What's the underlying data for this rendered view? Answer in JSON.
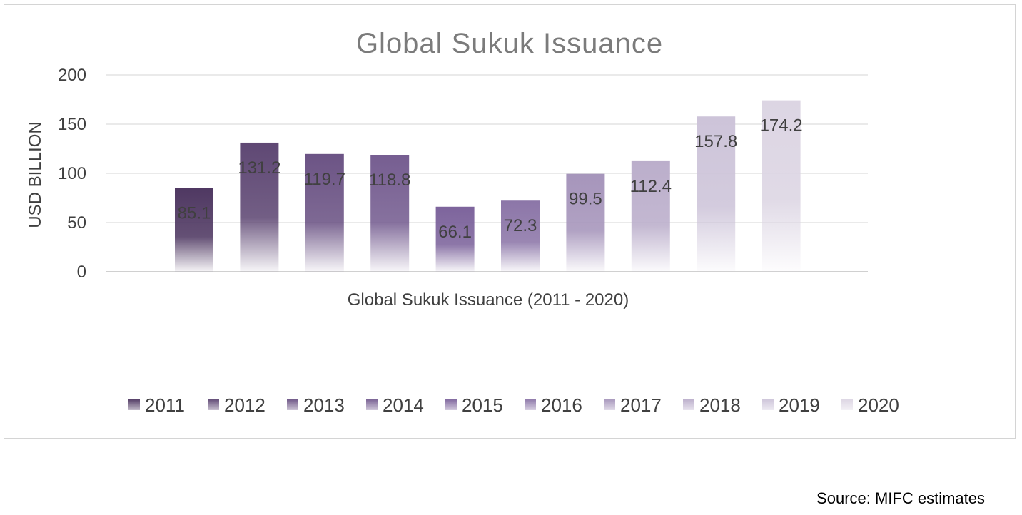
{
  "chart_data": {
    "type": "bar",
    "title": "Global Sukuk Issuance",
    "xlabel": "Global Sukuk Issuance (2011 - 2020)",
    "ylabel": "USD BILLION",
    "ylim": [
      0,
      200
    ],
    "yticks": [
      "0",
      "50",
      "100",
      "150",
      "200"
    ],
    "grid": true,
    "legend_position": "bottom",
    "series": [
      {
        "name": "2011",
        "value": 85.1,
        "label": "85.1",
        "color": "#4f3862"
      },
      {
        "name": "2012",
        "value": 131.2,
        "label": "131.2",
        "color": "#5f4874"
      },
      {
        "name": "2013",
        "value": 119.7,
        "label": "119.7",
        "color": "#6c5485"
      },
      {
        "name": "2014",
        "value": 118.8,
        "label": "118.8",
        "color": "#765e91"
      },
      {
        "name": "2015",
        "value": 66.1,
        "label": "66.1",
        "color": "#7d649c"
      },
      {
        "name": "2016",
        "value": 72.3,
        "label": "72.3",
        "color": "#8c76a8"
      },
      {
        "name": "2017",
        "value": 99.5,
        "label": "99.5",
        "color": "#a695bb"
      },
      {
        "name": "2018",
        "value": 112.4,
        "label": "112.4",
        "color": "#bbaecb"
      },
      {
        "name": "2019",
        "value": 157.8,
        "label": "157.8",
        "color": "#cdc4d9"
      },
      {
        "name": "2020",
        "value": 174.2,
        "label": "174.2",
        "color": "#dcd5e3"
      }
    ]
  },
  "source": "Source: MIFC estimates"
}
